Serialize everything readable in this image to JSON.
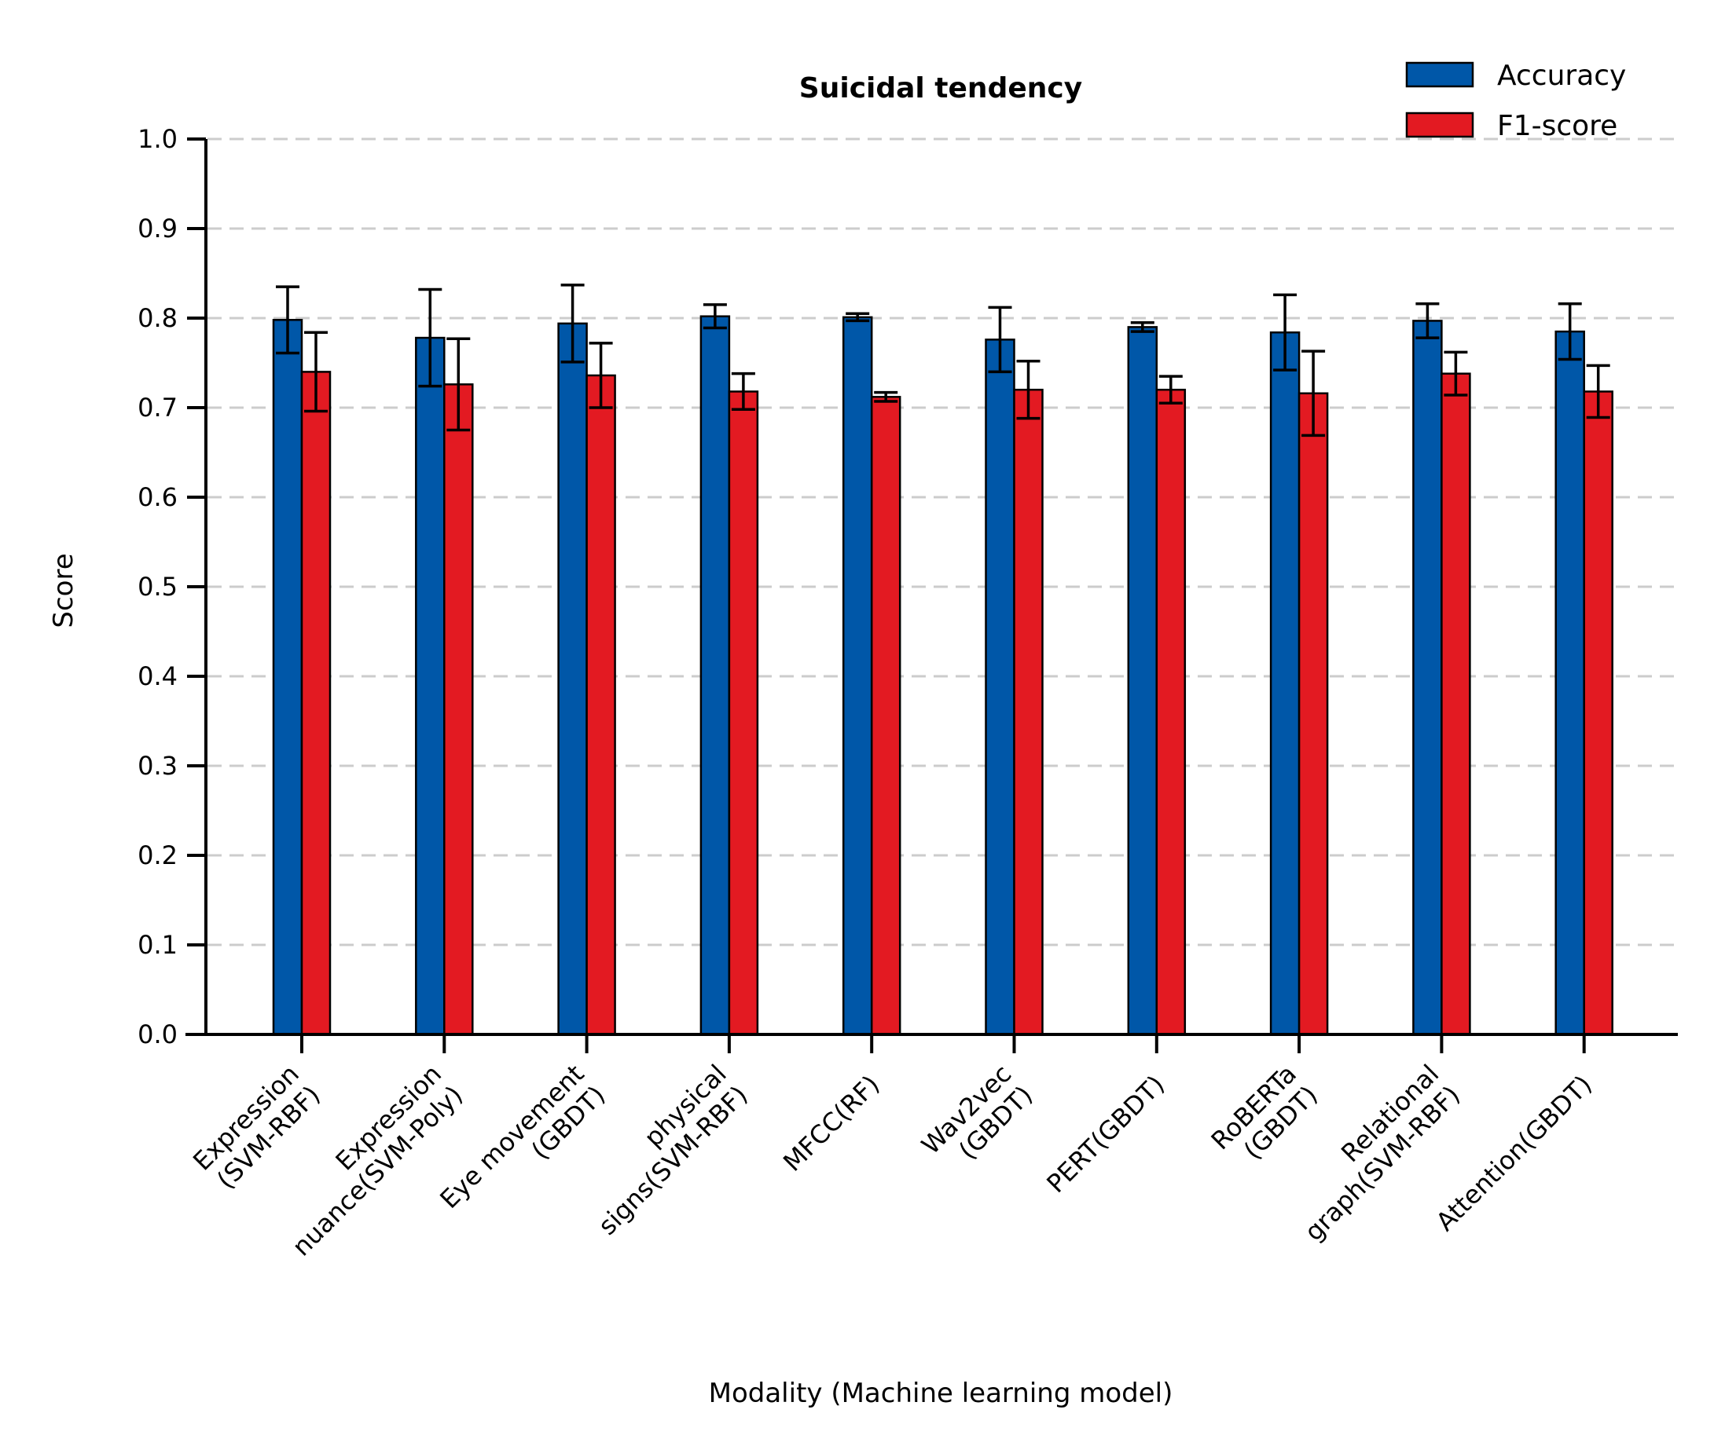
{
  "chart_data": {
    "type": "bar",
    "title": "Suicidal tendency",
    "xlabel": "Modality (Machine learning model)",
    "ylabel": "Score",
    "ylim": [
      0,
      1.0
    ],
    "yticks": [
      "0.0",
      "0.1",
      "0.2",
      "0.3",
      "0.4",
      "0.5",
      "0.6",
      "0.7",
      "0.8",
      "0.9",
      "1.0"
    ],
    "grid": "y-dashed",
    "legend_position": "top-right",
    "categories": [
      [
        "Expression",
        "(SVM-RBF)"
      ],
      [
        "Expression",
        "nuance(SVM-Poly)"
      ],
      [
        "Eye movement",
        "(GBDT)"
      ],
      [
        "physical",
        "signs(SVM-RBF)"
      ],
      [
        "MFCC(RF)"
      ],
      [
        "Wav2vec",
        "(GBDT)"
      ],
      [
        "PERT(GBDT)"
      ],
      [
        "RoBERTa",
        "(GBDT)"
      ],
      [
        "Relational",
        "graph(SVM-RBF)"
      ],
      [
        "Attention(GBDT)"
      ]
    ],
    "series": [
      {
        "name": "Accuracy",
        "color": "#0057a8",
        "values": [
          0.798,
          0.778,
          0.794,
          0.802,
          0.801,
          0.776,
          0.79,
          0.784,
          0.797,
          0.785
        ],
        "errors": [
          0.037,
          0.054,
          0.043,
          0.013,
          0.004,
          0.036,
          0.005,
          0.042,
          0.019,
          0.031
        ]
      },
      {
        "name": "F1-score",
        "color": "#e31a22",
        "values": [
          0.74,
          0.726,
          0.736,
          0.718,
          0.712,
          0.72,
          0.72,
          0.716,
          0.738,
          0.718
        ],
        "errors": [
          0.044,
          0.051,
          0.036,
          0.02,
          0.005,
          0.032,
          0.015,
          0.047,
          0.024,
          0.029
        ]
      }
    ]
  }
}
